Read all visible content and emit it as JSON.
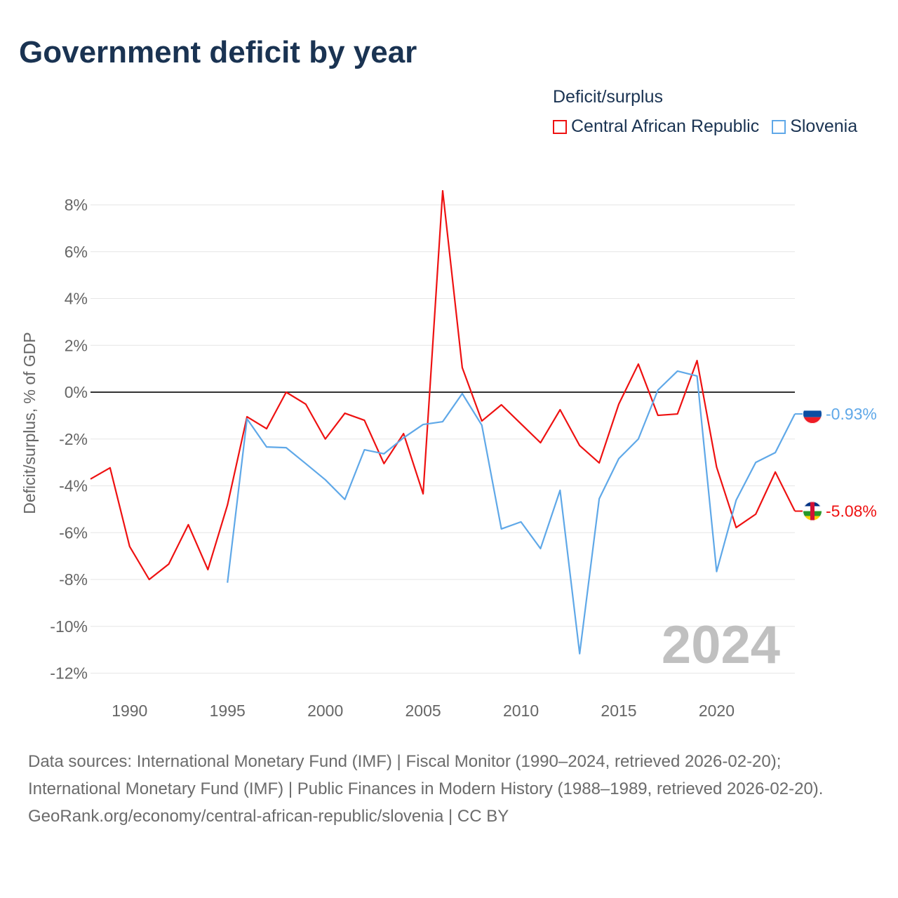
{
  "title": "Government deficit by year",
  "legend": {
    "title": "Deficit/surplus",
    "items": [
      {
        "label": "Central African Republic",
        "color": "#ee1111"
      },
      {
        "label": "Slovenia",
        "color": "#5fa8e8"
      }
    ]
  },
  "year_watermark": "2024",
  "footer": {
    "sources": "Data sources: International Monetary Fund (IMF) | Fiscal Monitor (1990–2024, retrieved 2026-02-20); International Monetary Fund (IMF) | Public Finances in Modern History (1988–1989, retrieved 2026-02-20).",
    "credit": "GeoRank.org/economy/central-african-republic/slovenia | CC BY"
  },
  "chart_data": {
    "type": "line",
    "title": "Government deficit by year",
    "xlabel": "",
    "ylabel": "Deficit/surplus, % of GDP",
    "xlim": [
      1988,
      2024
    ],
    "ylim": [
      -12.5,
      8.7
    ],
    "x_ticks": [
      1990,
      1995,
      2000,
      2005,
      2010,
      2015,
      2020
    ],
    "x_tick_labels": [
      "1990",
      "1995",
      "2000",
      "2005",
      "2010",
      "2015",
      "2020"
    ],
    "y_ticks": [
      8,
      6,
      4,
      2,
      0,
      -2,
      -4,
      -6,
      -8,
      -10,
      -12
    ],
    "y_tick_labels": [
      "8%",
      "6%",
      "4%",
      "2%",
      "0%",
      "-2%",
      "-4%",
      "-6%",
      "-8%",
      "-10%",
      "-12%"
    ],
    "grid": true,
    "legend_position": "top-right",
    "series": [
      {
        "name": "Central African Republic",
        "color": "#ee1111",
        "end_label": "-5.08%",
        "x": [
          1988,
          1989,
          1990,
          1991,
          1992,
          1993,
          1994,
          1995,
          1996,
          1997,
          1998,
          1999,
          2000,
          2001,
          2002,
          2003,
          2004,
          2005,
          2006,
          2007,
          2008,
          2009,
          2010,
          2011,
          2012,
          2013,
          2014,
          2015,
          2016,
          2017,
          2018,
          2019,
          2020,
          2021,
          2022,
          2023,
          2024
        ],
        "values": [
          -3.71,
          -3.23,
          -6.59,
          -8.0,
          -7.34,
          -5.66,
          -7.58,
          -4.82,
          -1.05,
          -1.56,
          0.0,
          -0.51,
          -2.0,
          -0.9,
          -1.2,
          -3.05,
          -1.77,
          -4.34,
          8.6,
          1.05,
          -1.23,
          -0.54,
          -1.35,
          -2.16,
          -0.75,
          -2.28,
          -3.02,
          -0.51,
          1.2,
          -0.99,
          -0.93,
          1.35,
          -3.2,
          -5.78,
          -5.21,
          -3.41,
          -5.08
        ]
      },
      {
        "name": "Slovenia",
        "color": "#5fa8e8",
        "end_label": "-0.93%",
        "x": [
          1995,
          1996,
          1997,
          1998,
          1999,
          2000,
          2001,
          2002,
          2003,
          2004,
          2005,
          2006,
          2007,
          2008,
          2009,
          2010,
          2011,
          2012,
          2013,
          2014,
          2015,
          2016,
          2017,
          2018,
          2019,
          2020,
          2021,
          2022,
          2023,
          2024
        ],
        "values": [
          -8.14,
          -1.14,
          -2.34,
          -2.37,
          -3.05,
          -3.74,
          -4.58,
          -2.46,
          -2.63,
          -1.95,
          -1.38,
          -1.26,
          -0.06,
          -1.41,
          -5.84,
          -5.54,
          -6.68,
          -4.19,
          -11.17,
          -4.55,
          -2.84,
          -2.0,
          0.09,
          0.9,
          0.69,
          -7.66,
          -4.61,
          -3.0,
          -2.58,
          -0.93
        ]
      }
    ]
  }
}
